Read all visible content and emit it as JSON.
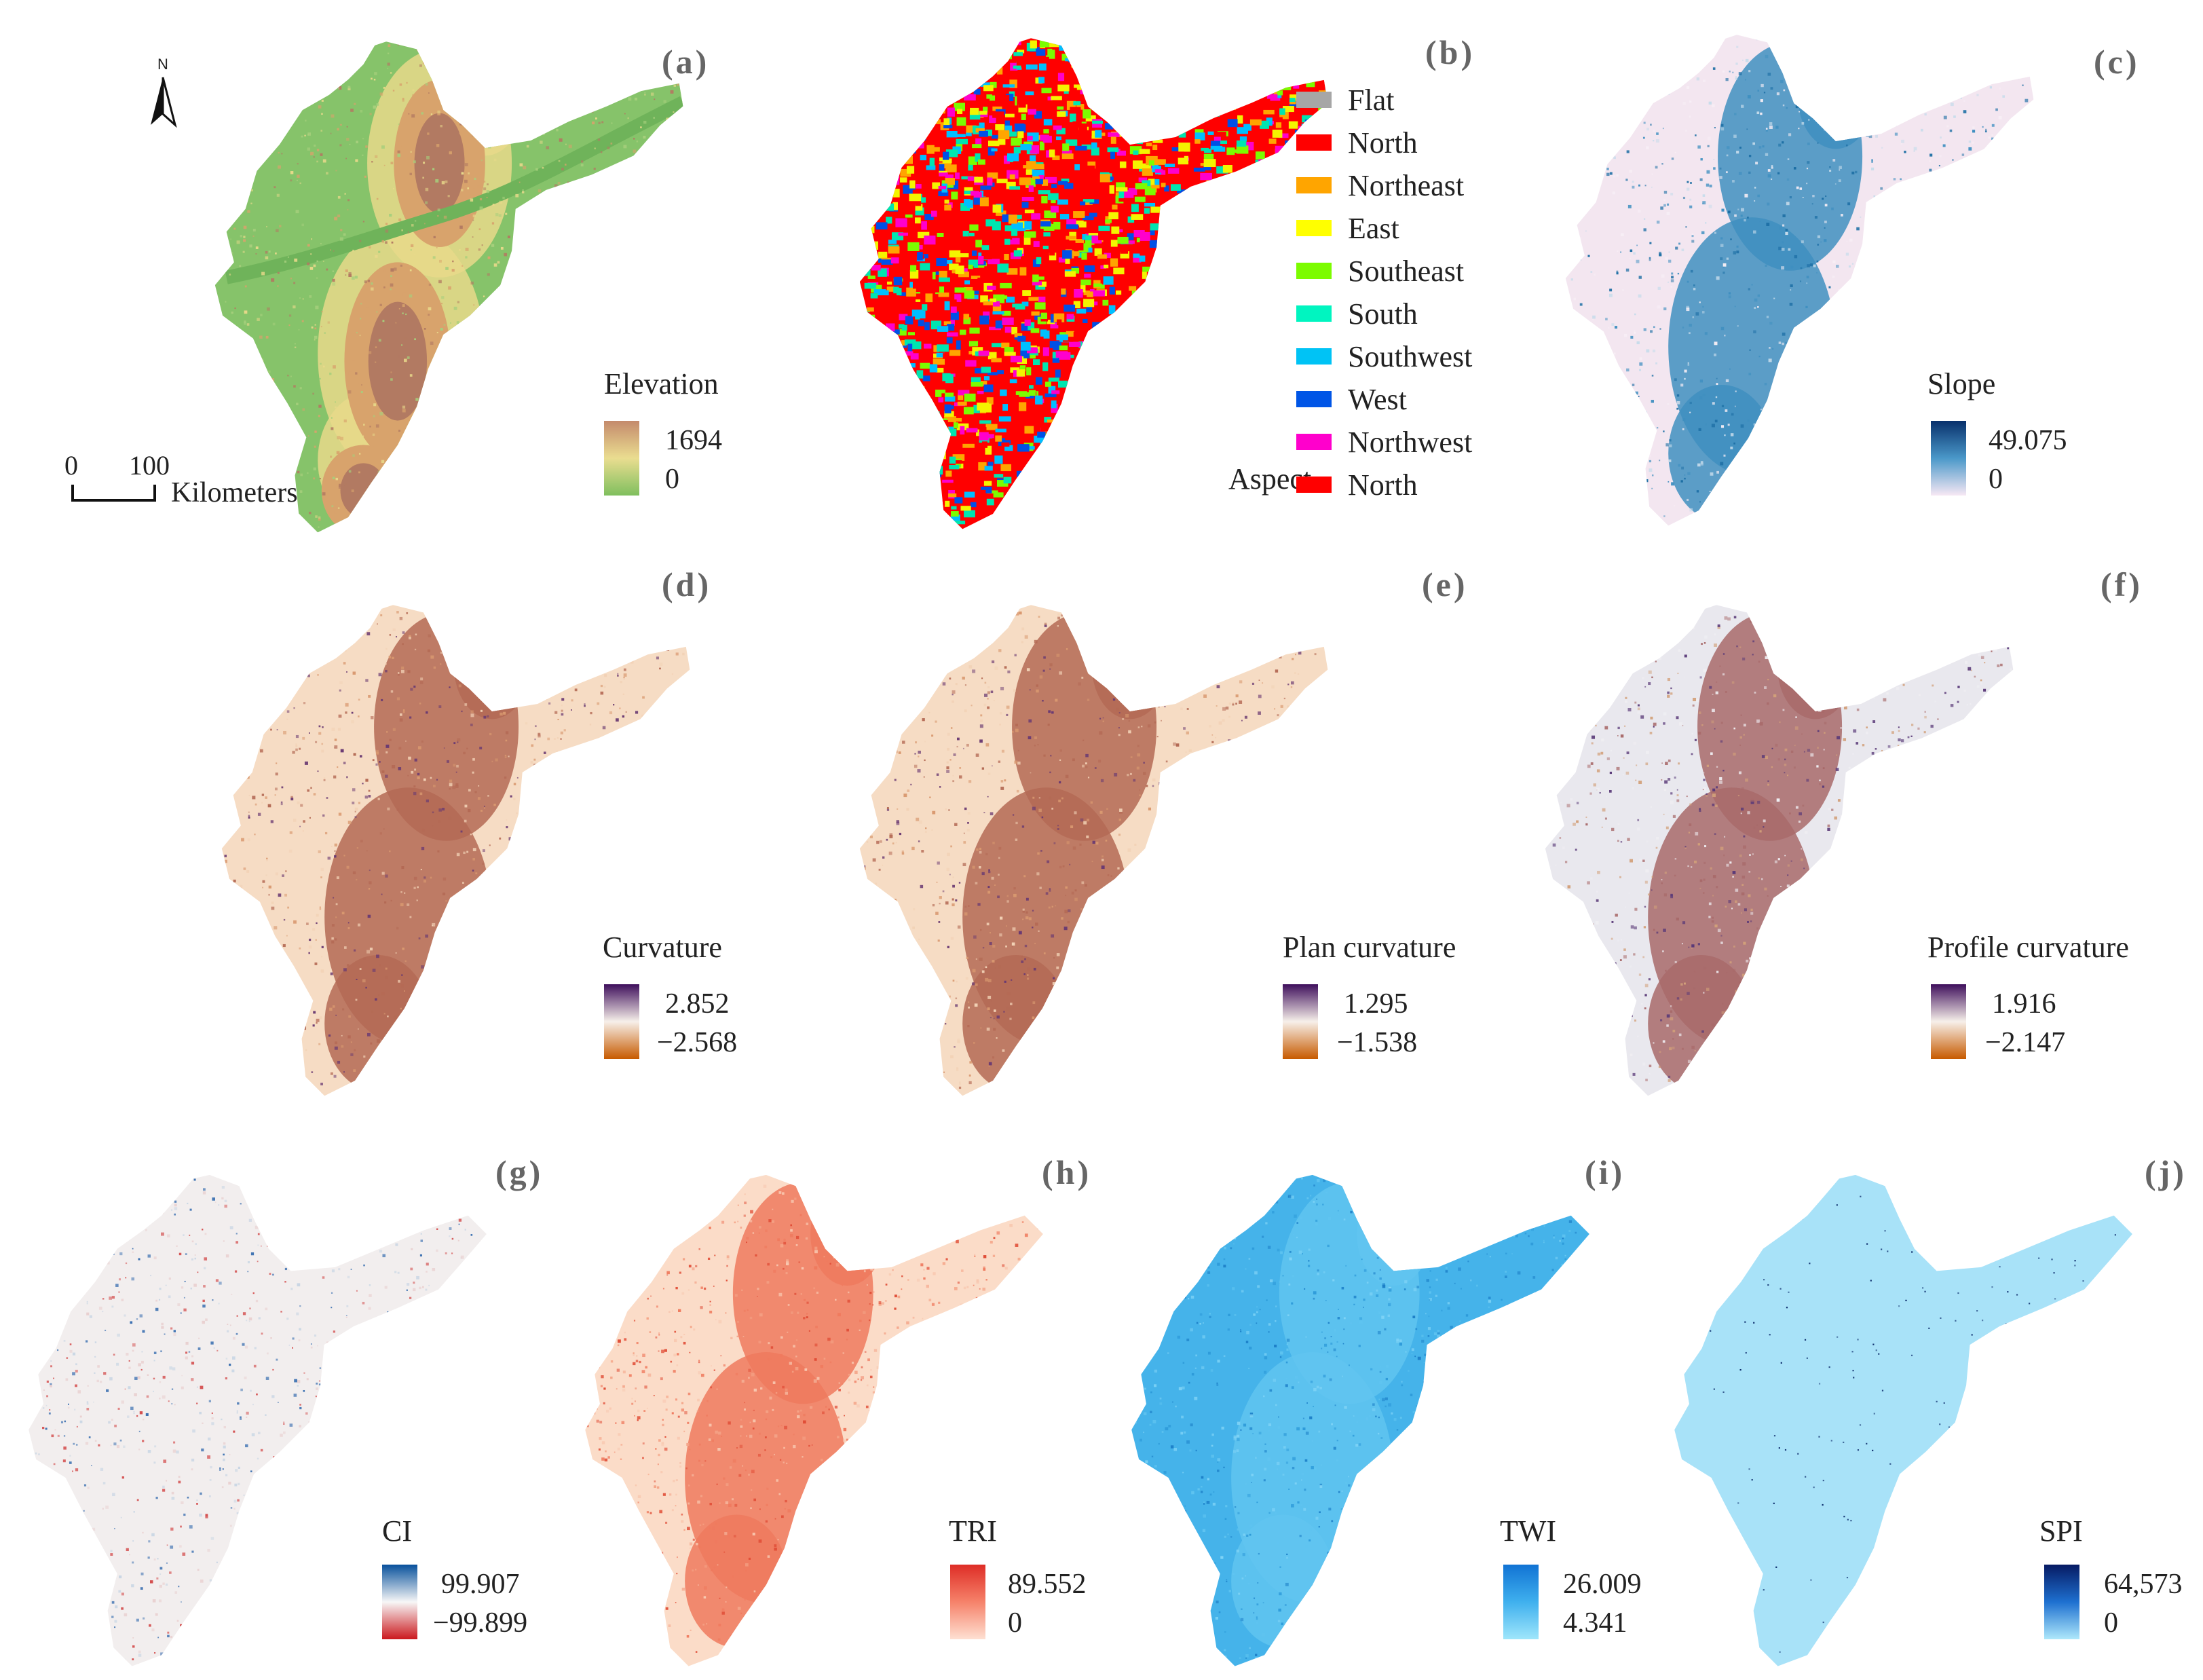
{
  "panels": [
    {
      "id": "a",
      "label": "(a)",
      "legend_title": "Elevation",
      "max": "1694",
      "min": "0",
      "ramp_top": "#c48a6c",
      "ramp_mid": "#eadd90",
      "ramp_bot": "#7fbf5e",
      "map_colors": [
        "#86c36a",
        "#a6cf7c",
        "#e8d98a",
        "#d8a36c",
        "#b27a62"
      ]
    },
    {
      "id": "b",
      "label": "(b)",
      "legend_title": "Aspect",
      "map_colors": [
        "#ff0000",
        "#ffa500",
        "#f4f400",
        "#7cfc00",
        "#00e5b0",
        "#00bfff",
        "#0050e6",
        "#ff00cc"
      ]
    },
    {
      "id": "c",
      "label": "(c)",
      "legend_title": "Slope",
      "max": "49.075",
      "min": "0",
      "ramp_top": "#08306b",
      "ramp_mid": "#4a98c9",
      "ramp_bot": "#f7e8f4",
      "map_colors": [
        "#f3e6f0",
        "#f7eef5",
        "#3f8fc0",
        "#1c6ea4",
        "#c7dceb"
      ]
    },
    {
      "id": "d",
      "label": "(d)",
      "legend_title": "Curvature",
      "max": "2.852",
      "min": "−2.568",
      "ramp_top": "#3f0f5c",
      "ramp_mid": "#f7f0ea",
      "ramp_bot": "#c75a00",
      "map_colors": [
        "#f6dcc4",
        "#f2d2b6",
        "#b46a55",
        "#6a3a72",
        "#d99970"
      ]
    },
    {
      "id": "e",
      "label": "(e)",
      "legend_title": "Plan curvature",
      "max": "1.295",
      "min": "−1.538",
      "ramp_top": "#3f0f5c",
      "ramp_mid": "#f7f0ea",
      "ramp_bot": "#c75a00",
      "map_colors": [
        "#f6dcc4",
        "#f2d2b6",
        "#b46a55",
        "#6a3a72",
        "#d99970"
      ]
    },
    {
      "id": "f",
      "label": "(f)",
      "legend_title": "Profile curvature",
      "max": "1.916",
      "min": "−2.147",
      "ramp_top": "#3f0f5c",
      "ramp_mid": "#f7f0ea",
      "ramp_bot": "#c75a00",
      "map_colors": [
        "#e9e8ee",
        "#efeef2",
        "#a86a6a",
        "#5a3a78",
        "#d2a07a"
      ]
    },
    {
      "id": "g",
      "label": "(g)",
      "legend_title": "CI",
      "max": "99.907",
      "min": "−99.899",
      "ramp_top": "#08519c",
      "ramp_mid": "#f7f7f7",
      "ramp_bot": "#cb181d",
      "map_colors": [
        "#f2eeee",
        "#e9d0d0",
        "#c9d6e4",
        "#d45050",
        "#3a6fb0"
      ]
    },
    {
      "id": "h",
      "label": "(h)",
      "legend_title": "TRI",
      "max": "89.552",
      "min": "0",
      "ramp_top": "#de2d26",
      "ramp_mid": "#f6826a",
      "ramp_bot": "#fee0d2",
      "map_colors": [
        "#fbdcc8",
        "#f8c8b0",
        "#ef7a5e",
        "#e04c36",
        "#f4a488"
      ]
    },
    {
      "id": "i",
      "label": "(i)",
      "legend_title": "TWI",
      "max": "26.009",
      "min": "4.341",
      "ramp_top": "#1173d4",
      "ramp_mid": "#3fb0ee",
      "ramp_bot": "#9fe6fb",
      "map_colors": [
        "#45b3ea",
        "#2d9ad9",
        "#60c4f0",
        "#1d80c8",
        "#7fd3f6"
      ]
    },
    {
      "id": "j",
      "label": "(j)",
      "legend_title": "SPI",
      "max": "64,573",
      "min": "0",
      "ramp_top": "#061a63",
      "ramp_mid": "#1e70d0",
      "ramp_bot": "#aee8fb",
      "map_colors": [
        "#a8e2f8",
        "#a8e2f8",
        "#a8e2f8",
        "#0b2a6a",
        "#9fdcf5"
      ]
    }
  ],
  "aspect_legend": [
    {
      "label": "Flat",
      "color": "#a6a6a6"
    },
    {
      "label": "North",
      "color": "#ff0000"
    },
    {
      "label": "Northeast",
      "color": "#ffa500"
    },
    {
      "label": "East",
      "color": "#ffff00"
    },
    {
      "label": "Southeast",
      "color": "#7cfc00"
    },
    {
      "label": "South",
      "color": "#00f5c0"
    },
    {
      "label": "Southwest",
      "color": "#00c3f5"
    },
    {
      "label": "West",
      "color": "#0055e6"
    },
    {
      "label": "Northwest",
      "color": "#ff00cc"
    },
    {
      "label": "North",
      "color": "#ff0000"
    }
  ],
  "north_arrow": {
    "label": "N"
  },
  "scale_bar": {
    "tick_start": "0",
    "tick_end": "100",
    "unit": "Kilometers"
  }
}
